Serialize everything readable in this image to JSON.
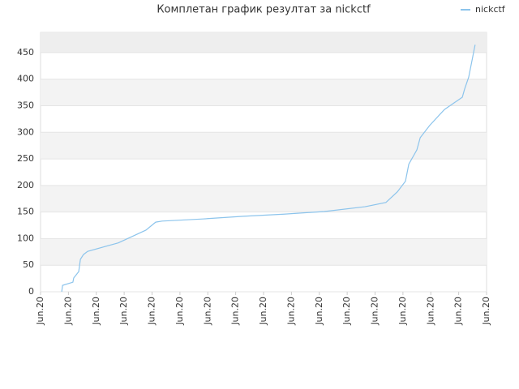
{
  "chart_data": {
    "type": "line",
    "title": "Комплетан график резултат за nickctf",
    "x": [
      0.76,
      0.79,
      1.16,
      1.19,
      1.37,
      1.43,
      1.54,
      1.69,
      2.79,
      3.78,
      4.13,
      4.36,
      5.82,
      7.27,
      8.73,
      10.18,
      11.64,
      12.39,
      12.8,
      13.09,
      13.21,
      13.5,
      13.62,
      13.96,
      14.49,
      15.13,
      15.21,
      15.36,
      15.59
    ],
    "series": [
      {
        "name": "nickctf",
        "color": "#8cc4ec",
        "values": [
          0,
          12,
          18,
          26,
          38,
          61,
          70,
          76,
          92,
          116,
          131,
          133,
          137,
          142,
          146,
          151,
          160,
          168,
          188,
          208,
          240,
          267,
          290,
          313,
          343,
          366,
          381,
          404,
          465
        ]
      }
    ],
    "xlim": [
      0,
      16
    ],
    "xticks": [
      {
        "value": 0,
        "label": "Jun.20"
      },
      {
        "value": 1,
        "label": "Jun.20"
      },
      {
        "value": 2,
        "label": "Jun.20"
      },
      {
        "value": 3,
        "label": "Jun.20"
      },
      {
        "value": 4,
        "label": "Jun.20"
      },
      {
        "value": 5,
        "label": "Jun.20"
      },
      {
        "value": 6,
        "label": "Jun.20"
      },
      {
        "value": 7,
        "label": "Jun.20"
      },
      {
        "value": 8,
        "label": "Jun.20"
      },
      {
        "value": 9,
        "label": "Jun.20"
      },
      {
        "value": 10,
        "label": "Jun.20"
      },
      {
        "value": 11,
        "label": "Jun.20"
      },
      {
        "value": 12,
        "label": "Jun.20"
      },
      {
        "value": 13,
        "label": "Jun.20"
      },
      {
        "value": 14,
        "label": "Jun.20"
      },
      {
        "value": 15,
        "label": "Jun.20"
      },
      {
        "value": 16,
        "label": "Jun.20"
      }
    ],
    "ylim": [
      0,
      488
    ],
    "yticks": [
      0,
      50,
      100,
      150,
      200,
      250,
      300,
      350,
      400,
      450
    ],
    "grid": true,
    "legend": "top-right"
  }
}
